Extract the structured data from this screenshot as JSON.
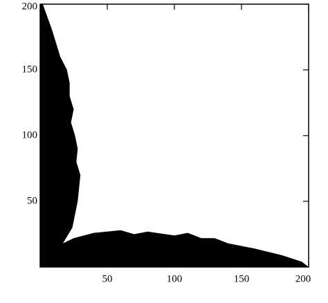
{
  "chart_data": {
    "type": "area",
    "color": "#000000",
    "x": [
      0,
      2,
      9,
      15,
      20,
      22,
      22,
      25,
      23,
      26,
      28,
      27,
      30,
      29,
      28,
      26,
      24,
      17,
      25,
      40,
      50,
      60,
      70,
      80,
      100,
      110,
      120,
      130,
      140,
      160,
      180,
      195,
      200,
      0
    ],
    "series": [
      {
        "values": [
          200,
          200,
          180,
          160,
          150,
          140,
          130,
          120,
          110,
          100,
          90,
          80,
          70,
          60,
          50,
          40,
          30,
          18,
          22,
          26,
          27,
          28,
          25,
          27,
          24,
          26,
          22,
          22,
          18,
          14,
          9,
          4,
          0,
          0
        ]
      }
    ],
    "xlim": [
      0,
      200
    ],
    "ylim": [
      0,
      200
    ],
    "xticks": [
      50,
      100,
      150,
      200
    ],
    "yticks": [
      50,
      100,
      150,
      200
    ]
  }
}
